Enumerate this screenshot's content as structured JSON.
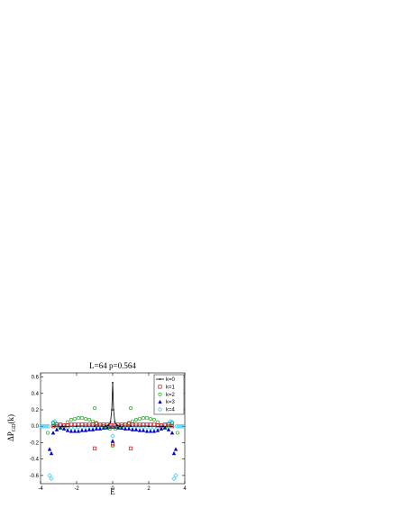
{
  "chart_data": {
    "type": "scatter",
    "title": "L=64 p=0.564",
    "xlabel": "E",
    "ylabel": "ΔP",
    "ylabel_sub": "GD",
    "ylabel_arg": "(k)",
    "xlim": [
      -4,
      4
    ],
    "ylim": [
      -0.7,
      0.65
    ],
    "x_ticks": [
      -4,
      -2,
      0,
      2,
      4
    ],
    "y_ticks": [
      -0.6,
      -0.4,
      -0.2,
      0.0,
      0.2,
      0.4,
      0.6
    ],
    "x_tick_labels": [
      "-4",
      "-2",
      "0",
      "2",
      "4"
    ],
    "y_tick_labels": [
      "-0.6",
      "-0.4",
      "-0.2",
      "0.0",
      "0.2",
      "0.4",
      "0.6"
    ],
    "legend_position": "top-right",
    "series": [
      {
        "name": "k=0",
        "marker": "line",
        "color": "#000000",
        "points": [
          [
            -3.3,
            0.0
          ],
          [
            -2.8,
            0.0
          ],
          [
            -2.0,
            0.0
          ],
          [
            -1.0,
            0.0
          ],
          [
            -0.4,
            0.0
          ],
          [
            -0.25,
            0.01
          ],
          [
            -0.12,
            0.05
          ],
          [
            -0.05,
            0.2
          ],
          [
            0.0,
            0.53
          ],
          [
            0.05,
            0.2
          ],
          [
            0.12,
            0.05
          ],
          [
            0.25,
            0.01
          ],
          [
            0.4,
            0.0
          ],
          [
            1.0,
            0.0
          ],
          [
            2.0,
            0.0
          ],
          [
            2.8,
            0.0
          ],
          [
            3.3,
            0.0
          ]
        ]
      },
      {
        "name": "k=1",
        "marker": "square",
        "color": "#e8000b",
        "points": [
          [
            -3.3,
            0.0
          ],
          [
            -3.1,
            0.02
          ],
          [
            -2.9,
            0.02
          ],
          [
            -2.7,
            0.01
          ],
          [
            -2.5,
            0.01
          ],
          [
            -2.3,
            0.02
          ],
          [
            -2.1,
            0.02
          ],
          [
            -1.9,
            0.02
          ],
          [
            -1.7,
            0.02
          ],
          [
            -1.5,
            0.02
          ],
          [
            -1.3,
            0.02
          ],
          [
            -1.1,
            0.02
          ],
          [
            -0.9,
            0.03
          ],
          [
            -0.7,
            0.02
          ],
          [
            -0.5,
            0.02
          ],
          [
            -0.3,
            0.02
          ],
          [
            -0.1,
            0.01
          ],
          [
            0.1,
            0.01
          ],
          [
            0.3,
            0.02
          ],
          [
            0.5,
            0.02
          ],
          [
            0.7,
            0.02
          ],
          [
            0.9,
            0.03
          ],
          [
            1.1,
            0.02
          ],
          [
            1.3,
            0.02
          ],
          [
            1.5,
            0.02
          ],
          [
            1.7,
            0.02
          ],
          [
            1.9,
            0.02
          ],
          [
            2.1,
            0.02
          ],
          [
            2.3,
            0.02
          ],
          [
            2.5,
            0.01
          ],
          [
            2.7,
            0.01
          ],
          [
            2.9,
            0.02
          ],
          [
            3.1,
            0.02
          ],
          [
            3.3,
            0.0
          ],
          [
            -1.0,
            -0.27
          ],
          [
            1.0,
            -0.27
          ],
          [
            0.0,
            -0.22
          ]
        ]
      },
      {
        "name": "k=2",
        "marker": "circle",
        "color": "#1faa1f",
        "points": [
          [
            -3.3,
            0.04
          ],
          [
            -3.1,
            0.0
          ],
          [
            -2.9,
            -0.02
          ],
          [
            -2.7,
            0.01
          ],
          [
            -2.5,
            0.05
          ],
          [
            -2.3,
            0.08
          ],
          [
            -2.1,
            0.09
          ],
          [
            -1.9,
            0.1
          ],
          [
            -1.7,
            0.1
          ],
          [
            -1.5,
            0.09
          ],
          [
            -1.3,
            0.08
          ],
          [
            -1.1,
            0.06
          ],
          [
            -0.9,
            0.04
          ],
          [
            -0.7,
            0.02
          ],
          [
            -0.5,
            0.0
          ],
          [
            -0.3,
            -0.02
          ],
          [
            -0.15,
            -0.03
          ],
          [
            0.15,
            -0.03
          ],
          [
            0.3,
            -0.02
          ],
          [
            0.5,
            0.0
          ],
          [
            0.7,
            0.02
          ],
          [
            0.9,
            0.04
          ],
          [
            1.1,
            0.06
          ],
          [
            1.3,
            0.08
          ],
          [
            1.5,
            0.09
          ],
          [
            1.7,
            0.1
          ],
          [
            1.9,
            0.1
          ],
          [
            2.1,
            0.09
          ],
          [
            2.3,
            0.08
          ],
          [
            2.5,
            0.05
          ],
          [
            2.7,
            0.01
          ],
          [
            2.9,
            -0.02
          ],
          [
            3.1,
            0.0
          ],
          [
            3.3,
            0.04
          ],
          [
            -1.0,
            0.22
          ],
          [
            1.0,
            0.22
          ],
          [
            -3.6,
            -0.08
          ],
          [
            3.6,
            -0.08
          ],
          [
            0.0,
            -0.24
          ]
        ]
      },
      {
        "name": "k=3",
        "marker": "triangle",
        "color": "#0000cc",
        "points": [
          [
            -3.5,
            -0.28
          ],
          [
            -3.4,
            -0.33
          ],
          [
            -3.3,
            -0.08
          ],
          [
            -3.1,
            -0.04
          ],
          [
            -2.9,
            -0.02
          ],
          [
            -2.7,
            -0.03
          ],
          [
            -2.5,
            -0.05
          ],
          [
            -2.3,
            -0.06
          ],
          [
            -2.1,
            -0.06
          ],
          [
            -1.9,
            -0.06
          ],
          [
            -1.7,
            -0.05
          ],
          [
            -1.5,
            -0.05
          ],
          [
            -1.3,
            -0.04
          ],
          [
            -1.1,
            -0.04
          ],
          [
            -0.9,
            -0.03
          ],
          [
            -0.7,
            -0.03
          ],
          [
            -0.5,
            -0.02
          ],
          [
            -0.3,
            -0.02
          ],
          [
            -0.1,
            -0.01
          ],
          [
            0.1,
            -0.01
          ],
          [
            0.3,
            -0.02
          ],
          [
            0.5,
            -0.02
          ],
          [
            0.7,
            -0.03
          ],
          [
            0.9,
            -0.03
          ],
          [
            1.1,
            -0.04
          ],
          [
            1.3,
            -0.04
          ],
          [
            1.5,
            -0.05
          ],
          [
            1.7,
            -0.05
          ],
          [
            1.9,
            -0.06
          ],
          [
            2.1,
            -0.06
          ],
          [
            2.3,
            -0.06
          ],
          [
            2.5,
            -0.05
          ],
          [
            2.7,
            -0.03
          ],
          [
            2.9,
            -0.02
          ],
          [
            3.1,
            -0.04
          ],
          [
            3.3,
            -0.08
          ],
          [
            3.4,
            -0.33
          ],
          [
            3.5,
            -0.28
          ],
          [
            0.0,
            -0.18
          ]
        ]
      },
      {
        "name": "k=4",
        "marker": "diamond",
        "color": "#33ccff",
        "points": [
          [
            -3.95,
            0.0
          ],
          [
            -3.85,
            0.0
          ],
          [
            -3.75,
            0.0
          ],
          [
            -3.65,
            0.0
          ],
          [
            -3.55,
            0.0
          ],
          [
            -3.5,
            -0.6
          ],
          [
            -3.4,
            -0.64
          ],
          [
            -3.3,
            0.05
          ],
          [
            -3.2,
            0.06
          ],
          [
            -3.1,
            0.03
          ],
          [
            -2.9,
            0.01
          ],
          [
            -2.7,
            -0.01
          ],
          [
            -2.5,
            -0.02
          ],
          [
            -2.3,
            -0.02
          ],
          [
            -2.1,
            -0.02
          ],
          [
            -1.9,
            -0.01
          ],
          [
            -1.7,
            -0.01
          ],
          [
            -1.5,
            0.0
          ],
          [
            -1.3,
            0.0
          ],
          [
            -1.1,
            0.0
          ],
          [
            -0.9,
            0.0
          ],
          [
            -0.7,
            0.0
          ],
          [
            -0.5,
            0.0
          ],
          [
            -0.3,
            0.0
          ],
          [
            -0.1,
            0.0
          ],
          [
            0.1,
            0.0
          ],
          [
            0.3,
            0.0
          ],
          [
            0.5,
            0.0
          ],
          [
            0.7,
            0.0
          ],
          [
            0.9,
            0.0
          ],
          [
            1.1,
            0.0
          ],
          [
            1.3,
            0.0
          ],
          [
            1.5,
            0.0
          ],
          [
            1.7,
            -0.01
          ],
          [
            1.9,
            -0.01
          ],
          [
            2.1,
            -0.02
          ],
          [
            2.3,
            -0.02
          ],
          [
            2.5,
            -0.02
          ],
          [
            2.7,
            -0.01
          ],
          [
            2.9,
            0.01
          ],
          [
            3.1,
            0.03
          ],
          [
            3.2,
            0.06
          ],
          [
            3.3,
            0.05
          ],
          [
            3.4,
            -0.64
          ],
          [
            3.5,
            -0.6
          ],
          [
            3.55,
            0.0
          ],
          [
            3.65,
            0.0
          ],
          [
            3.75,
            0.0
          ],
          [
            3.85,
            0.0
          ],
          [
            3.95,
            0.0
          ],
          [
            0.0,
            -0.12
          ]
        ]
      }
    ]
  }
}
